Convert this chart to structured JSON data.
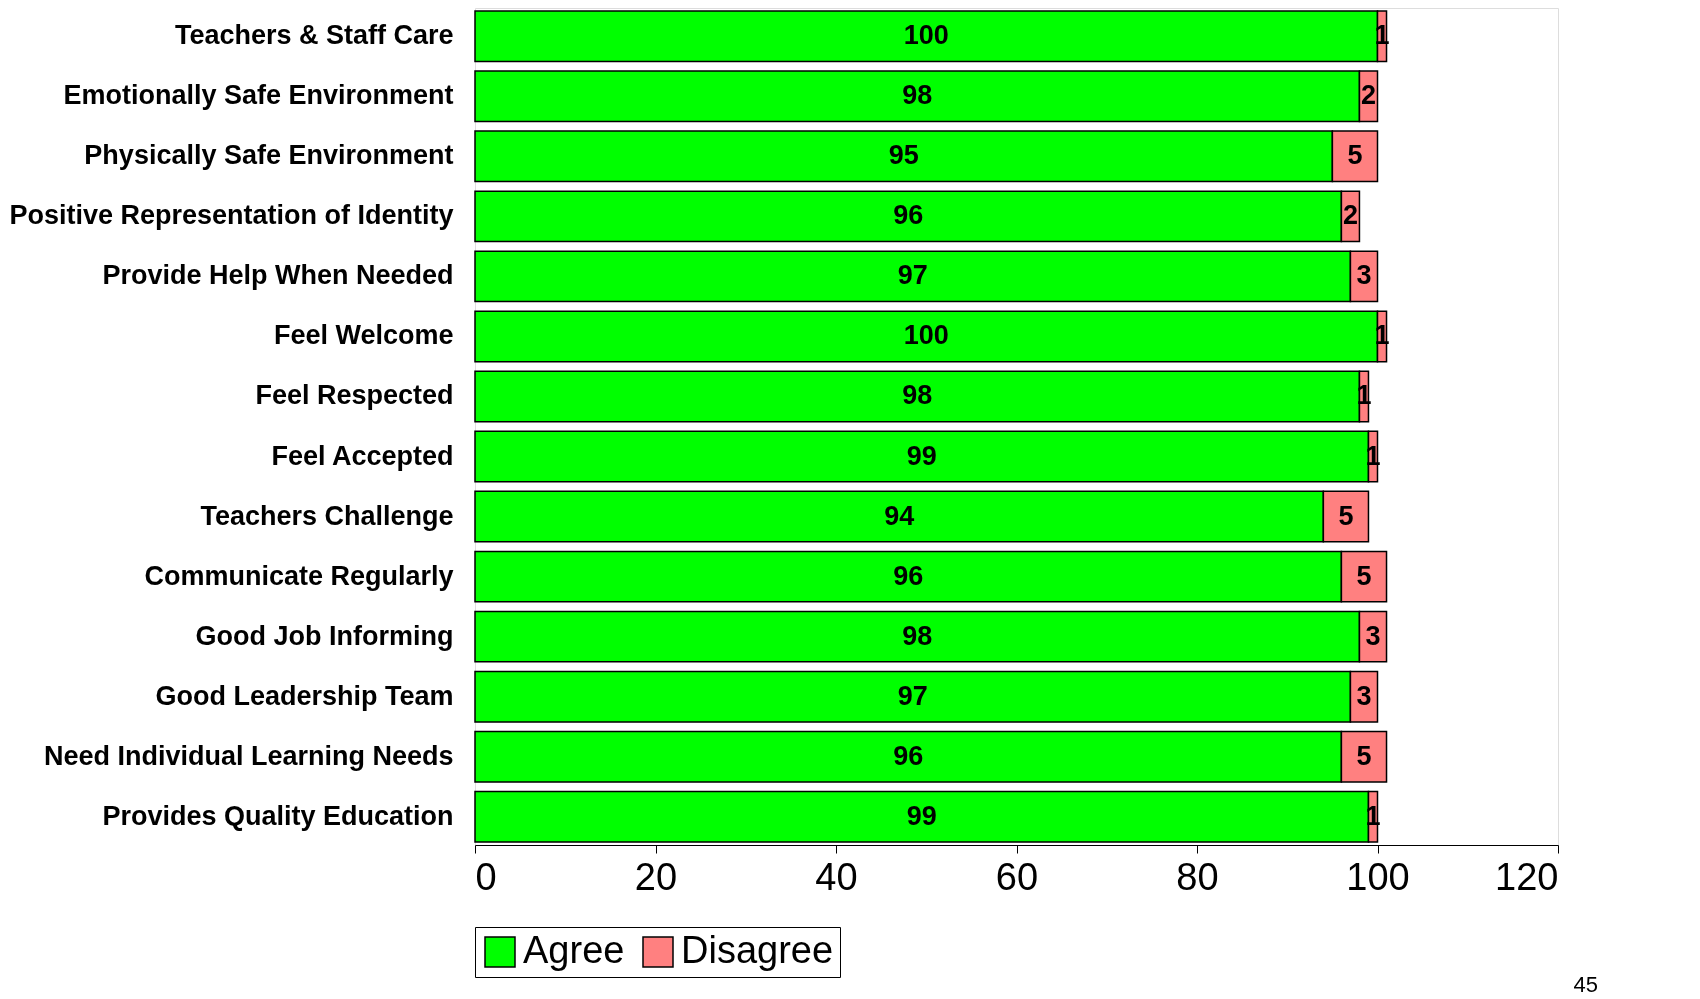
{
  "chart_data": {
    "type": "bar",
    "orientation": "horizontal",
    "stacked": true,
    "categories": [
      "Teachers & Staff Care",
      "Emotionally Safe Environment",
      "Physically Safe Environment",
      "Positive Representation of Identity",
      "Provide Help When Needed",
      "Feel Welcome",
      "Feel Respected",
      "Feel Accepted",
      "Teachers Challenge",
      "Communicate Regularly",
      "Good Job Informing",
      "Good Leadership Team",
      "Need Individual Learning Needs",
      "Provides Quality Education"
    ],
    "series": [
      {
        "name": "Agree",
        "color": "#00ff00",
        "values": [
          100,
          98,
          95,
          96,
          97,
          100,
          98,
          99,
          94,
          96,
          98,
          97,
          96,
          99
        ]
      },
      {
        "name": "Disagree",
        "color": "#ff8080",
        "values": [
          1,
          2,
          5,
          2,
          3,
          1,
          1,
          1,
          5,
          5,
          3,
          3,
          5,
          1
        ]
      }
    ],
    "xlim": [
      0,
      120
    ],
    "xticks": [
      0,
      20,
      40,
      60,
      80,
      100,
      120
    ],
    "data_labels": true,
    "legend": "bottom",
    "annotations": [
      "45"
    ]
  }
}
